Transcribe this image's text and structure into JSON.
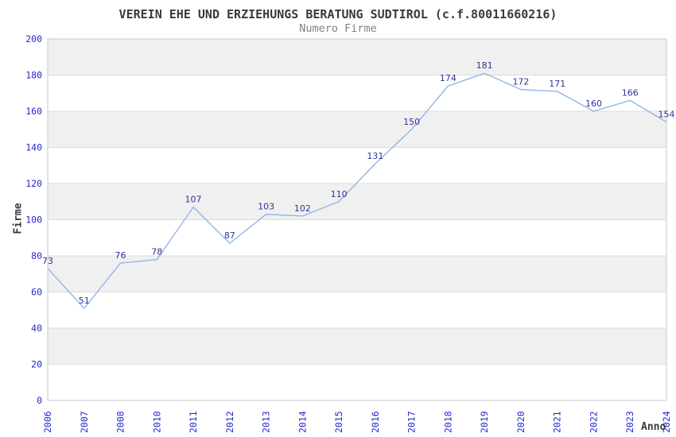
{
  "chart_data": {
    "type": "line",
    "title": "VEREIN EHE UND ERZIEHUNGS BERATUNG SUDTIROL (c.f.80011660216)",
    "subtitle": "Numero Firme",
    "xlabel": "Anno",
    "ylabel": "Firme",
    "categories": [
      "2006",
      "2007",
      "2008",
      "2010",
      "2011",
      "2012",
      "2013",
      "2014",
      "2015",
      "2016",
      "2017",
      "2018",
      "2019",
      "2020",
      "2021",
      "2022",
      "2023",
      "2024"
    ],
    "values": [
      73,
      51,
      76,
      78,
      107,
      87,
      103,
      102,
      110,
      131,
      150,
      174,
      181,
      172,
      171,
      160,
      166,
      154
    ],
    "ylim": [
      0,
      200
    ],
    "ytick_step": 20,
    "yticks": [
      0,
      20,
      40,
      60,
      80,
      100,
      120,
      140,
      160,
      180,
      200
    ],
    "grid": "horizontal-alternating-bands",
    "legend_position": "none",
    "markers": "none",
    "data_labels_shown": true,
    "colors": {
      "line": "#8ab2e6",
      "data_label": "#32329b",
      "tick_label": "#2727cc",
      "title": "#3a3a3a",
      "subtitle": "#828282",
      "axis_title": "#3a3a3a",
      "band_fill": "#f0f0f0",
      "plot_fill": "#ffffff",
      "gridline": "#dcdcdc",
      "border": "#c9c9c9"
    }
  }
}
